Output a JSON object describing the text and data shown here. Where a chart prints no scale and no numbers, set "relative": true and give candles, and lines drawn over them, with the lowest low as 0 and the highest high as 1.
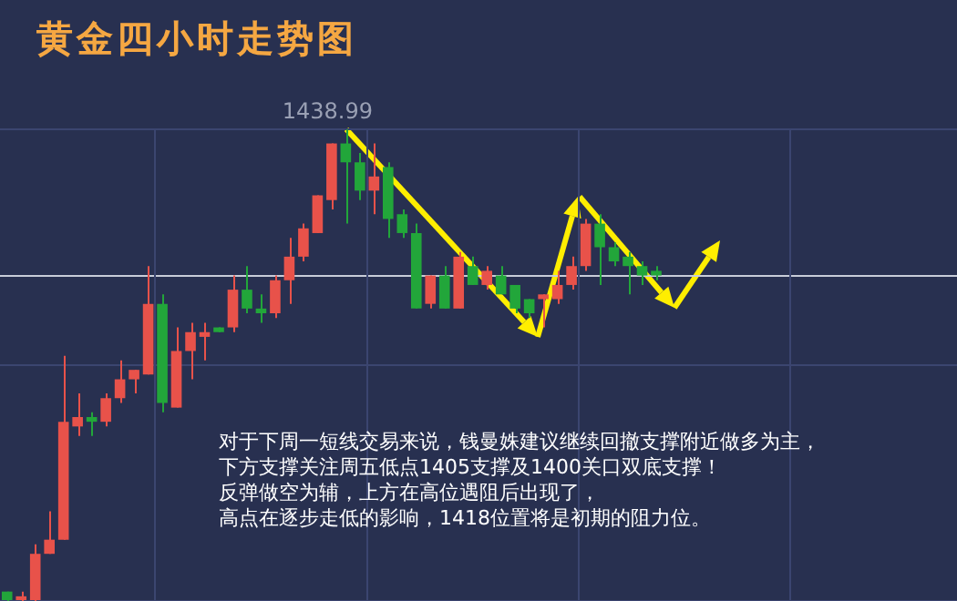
{
  "chart_data": {
    "type": "candlestick",
    "title": "黄金四小时走势图",
    "relative": true,
    "grid": true,
    "categories": [
      null,
      null,
      null,
      null,
      null,
      null,
      null,
      null,
      null,
      null,
      null,
      null,
      null,
      null,
      null,
      null,
      null,
      null,
      null,
      null,
      null,
      null,
      null,
      null,
      null,
      null,
      null,
      null,
      null,
      null,
      null,
      null,
      null,
      null,
      null,
      null,
      null,
      null,
      null,
      null,
      null,
      null,
      null,
      null,
      null,
      null,
      null
    ],
    "ohlc": [
      [
        0.02,
        0.02,
        0,
        0
      ],
      [
        0,
        0.02,
        0,
        0.01
      ],
      [
        0,
        0.12,
        0,
        0.1
      ],
      [
        0.1,
        0.19,
        0.1,
        0.13
      ],
      [
        0.13,
        0.52,
        0.13,
        0.38
      ],
      [
        0.37,
        0.44,
        0.35,
        0.39
      ],
      [
        0.39,
        0.4,
        0.35,
        0.38
      ],
      [
        0.38,
        0.44,
        0.37,
        0.43
      ],
      [
        0.43,
        0.51,
        0.42,
        0.47
      ],
      [
        0.47,
        0.49,
        0.44,
        0.49
      ],
      [
        0.48,
        0.71,
        0.48,
        0.63
      ],
      [
        0.63,
        0.65,
        0.4,
        0.42
      ],
      [
        0.41,
        0.58,
        0.41,
        0.53
      ],
      [
        0.53,
        0.59,
        0.47,
        0.57
      ],
      [
        0.56,
        0.59,
        0.51,
        0.57
      ],
      [
        0.58,
        0.58,
        0.57,
        0.57
      ],
      [
        0.58,
        0.69,
        0.57,
        0.66
      ],
      [
        0.66,
        0.71,
        0.61,
        0.62
      ],
      [
        0.62,
        0.65,
        0.59,
        0.61
      ],
      [
        0.61,
        0.69,
        0.6,
        0.68
      ],
      [
        0.68,
        0.77,
        0.63,
        0.73
      ],
      [
        0.73,
        0.8,
        0.72,
        0.79
      ],
      [
        0.78,
        0.86,
        0.78,
        0.86
      ],
      [
        0.85,
        0.97,
        0.83,
        0.97
      ],
      [
        0.97,
        1,
        0.8,
        0.93
      ],
      [
        0.93,
        0.95,
        0.85,
        0.87
      ],
      [
        0.87,
        0.97,
        0.82,
        0.9
      ],
      [
        0.92,
        0.93,
        0.77,
        0.81
      ],
      [
        0.82,
        0.83,
        0.77,
        0.78
      ],
      [
        0.78,
        0.8,
        0.62,
        0.62
      ],
      [
        0.63,
        0.69,
        0.62,
        0.69
      ],
      [
        0.69,
        0.71,
        0.62,
        0.62
      ],
      [
        0.62,
        0.74,
        0.62,
        0.73
      ],
      [
        0.71,
        0.73,
        0.67,
        0.67
      ],
      [
        0.67,
        0.71,
        0.66,
        0.7
      ],
      [
        0.69,
        0.71,
        0.65,
        0.65
      ],
      [
        0.67,
        0.67,
        0.61,
        0.62
      ],
      [
        0.64,
        0.64,
        0.6,
        0.61
      ],
      [
        0.64,
        0.65,
        0.58,
        0.65
      ],
      [
        0.64,
        0.7,
        0.63,
        0.67
      ],
      [
        0.67,
        0.73,
        0.66,
        0.71
      ],
      [
        0.71,
        0.81,
        0.7,
        0.8
      ],
      [
        0.8,
        0.82,
        0.67,
        0.75
      ],
      [
        0.75,
        0.76,
        0.71,
        0.72
      ],
      [
        0.73,
        0.74,
        0.65,
        0.71
      ],
      [
        0.71,
        0.72,
        0.67,
        0.69
      ],
      [
        0.7,
        0.71,
        0.68,
        0.69
      ]
    ],
    "ref_lines": [
      {
        "axis": "y",
        "value": 0.69,
        "color": "#c8ccd8"
      }
    ],
    "annotations": [
      "1438.99",
      "对于下周一短线交易来说，钱曼姝建议继续回撤支撑附近做多为主，",
      "下方支撑关注周五低点1405支撑及1400关口双底支撑！",
      "反弹做空为辅，上方在高位遇阻后出现了，",
      "高点在逐步走低的影响，1418位置将是初期的阻力位。"
    ]
  }
}
